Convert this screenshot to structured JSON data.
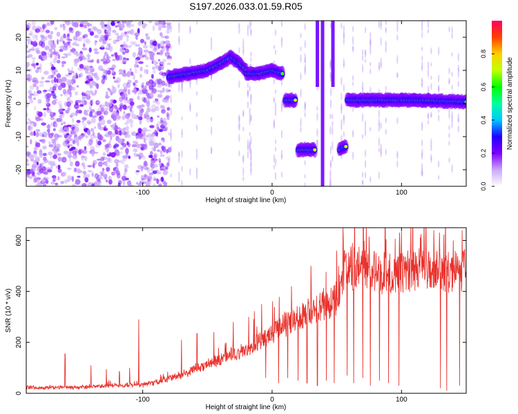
{
  "title": "S197.2026.033.01.59.R05",
  "chart_data": [
    {
      "type": "heatmap",
      "xlabel": "Height of straight line (km)",
      "ylabel": "Frequency (Hz)",
      "xlim": [
        -190,
        150
      ],
      "ylim": [
        -25,
        25
      ],
      "xticks": [
        -100,
        0,
        100
      ],
      "yticks": [
        -20,
        -10,
        0,
        10,
        20
      ],
      "colorbar": {
        "label": "Normalized spectral amplitude",
        "range": [
          0,
          1
        ],
        "ticks": [
          0.0,
          0.2,
          0.4,
          0.6,
          0.8
        ],
        "tick_labels": [
          "0.0",
          "0.2",
          "0.4",
          "0.6",
          "0.8"
        ]
      },
      "noise_region_km": [
        -190,
        -79
      ],
      "tracks": [
        {
          "x": [
            -80,
            -65,
            -50,
            -40,
            -32,
            -25,
            -20
          ],
          "y": [
            8,
            9,
            10,
            12,
            14,
            12,
            10
          ]
        },
        {
          "x": [
            -20,
            -10,
            0,
            8
          ],
          "y": [
            9,
            9,
            10,
            9
          ]
        },
        {
          "x": [
            10,
            18
          ],
          "y": [
            1,
            1
          ]
        },
        {
          "x": [
            20,
            33
          ],
          "y": [
            -14,
            -14
          ]
        },
        {
          "x": [
            52,
            57
          ],
          "y": [
            -14,
            -13
          ]
        },
        {
          "x": [
            58,
            100,
            110,
            150
          ],
          "y": [
            1,
            1,
            1,
            0.5
          ]
        }
      ],
      "vertical_streaks": [
        {
          "x": 35,
          "y": [
            5,
            25
          ]
        },
        {
          "x": 39,
          "y": [
            -25,
            25
          ]
        },
        {
          "x": 47,
          "y": [
            5,
            25
          ]
        }
      ]
    },
    {
      "type": "line",
      "xlabel": "Height of straight line (km)",
      "ylabel": "SNR (10 * v/v)",
      "xlim": [
        -190,
        150
      ],
      "ylim": [
        0,
        650
      ],
      "xticks": [
        -100,
        0,
        100
      ],
      "yticks": [
        0,
        200,
        400,
        600
      ],
      "series": [
        {
          "name": "SNR",
          "color": "#e8322c",
          "x": [
            -190,
            -180,
            -170,
            -160,
            -150,
            -140,
            -130,
            -120,
            -110,
            -100,
            -90,
            -80,
            -70,
            -60,
            -50,
            -40,
            -30,
            -20,
            -10,
            0,
            10,
            20,
            30,
            40,
            50,
            55,
            60,
            70,
            80,
            90,
            100,
            110,
            120,
            130,
            140,
            150
          ],
          "y": [
            20,
            18,
            20,
            22,
            20,
            24,
            28,
            30,
            30,
            32,
            40,
            55,
            70,
            90,
            110,
            130,
            150,
            170,
            200,
            230,
            270,
            290,
            320,
            340,
            360,
            480,
            490,
            490,
            480,
            460,
            470,
            480,
            490,
            480,
            470,
            480
          ]
        }
      ],
      "spikes": [
        {
          "x": -160,
          "y": 155
        },
        {
          "x": -140,
          "y": 110
        },
        {
          "x": -128,
          "y": 95
        },
        {
          "x": -118,
          "y": 85
        },
        {
          "x": -110,
          "y": 100
        },
        {
          "x": -103,
          "y": 290
        },
        {
          "x": -70,
          "y": 210
        },
        {
          "x": -58,
          "y": 235
        },
        {
          "x": -45,
          "y": 240
        },
        {
          "x": -30,
          "y": 280
        },
        {
          "x": -18,
          "y": 300
        },
        {
          "x": -8,
          "y": 350
        },
        {
          "x": 5,
          "y": 440
        },
        {
          "x": 15,
          "y": 420
        },
        {
          "x": 30,
          "y": 500
        },
        {
          "x": 50,
          "y": 560
        },
        {
          "x": 55,
          "y": 600
        },
        {
          "x": 62,
          "y": 590
        },
        {
          "x": 75,
          "y": 615
        },
        {
          "x": 88,
          "y": 605
        },
        {
          "x": 100,
          "y": 635
        },
        {
          "x": 115,
          "y": 625
        },
        {
          "x": 125,
          "y": 640
        },
        {
          "x": 140,
          "y": 600
        }
      ],
      "dips": [
        {
          "x": -5,
          "y": 60
        },
        {
          "x": 5,
          "y": 40
        },
        {
          "x": 12,
          "y": 60
        },
        {
          "x": 20,
          "y": 50
        },
        {
          "x": 27,
          "y": 40
        },
        {
          "x": 35,
          "y": 30
        },
        {
          "x": 42,
          "y": 50
        },
        {
          "x": 48,
          "y": 40
        },
        {
          "x": 58,
          "y": 70
        },
        {
          "x": 63,
          "y": 40
        },
        {
          "x": 70,
          "y": 60
        },
        {
          "x": 76,
          "y": 30
        },
        {
          "x": 83,
          "y": 50
        },
        {
          "x": 90,
          "y": 40
        },
        {
          "x": 98,
          "y": 30
        },
        {
          "x": 130,
          "y": 20
        },
        {
          "x": 135,
          "y": 10
        },
        {
          "x": 145,
          "y": 30
        }
      ]
    }
  ]
}
